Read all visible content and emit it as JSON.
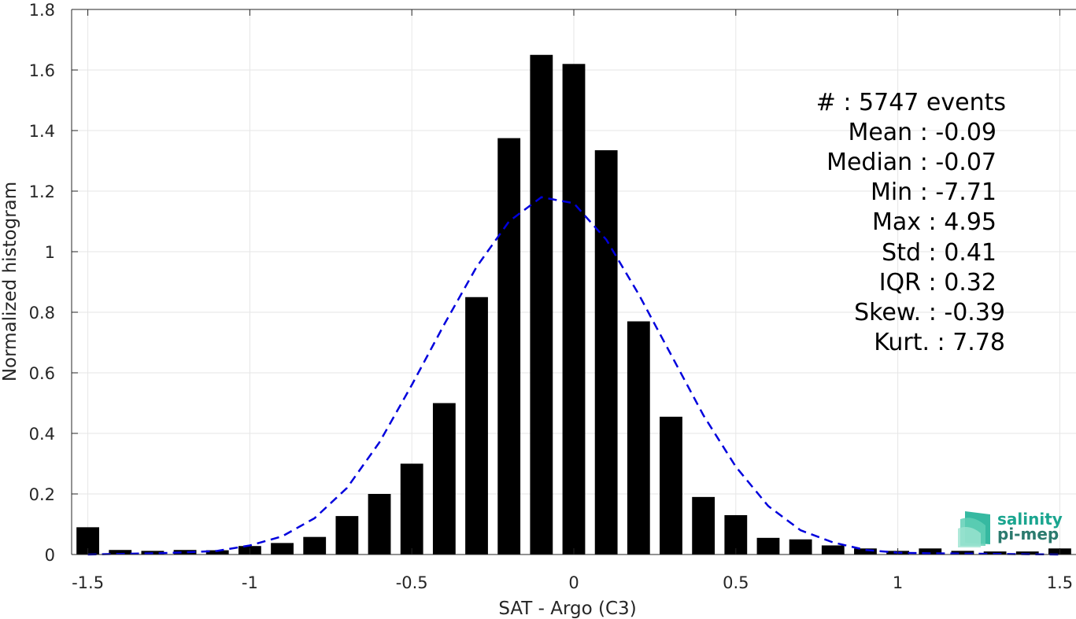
{
  "chart_data": {
    "type": "bar",
    "xlabel": "SAT - Argo (C3)",
    "ylabel": "Normalized histogram",
    "xlim": [
      -1.55,
      1.55
    ],
    "ylim": [
      0,
      1.8
    ],
    "xticks": [
      -1.5,
      -1,
      -0.5,
      0,
      0.5,
      1,
      1.5
    ],
    "xtick_labels": [
      "-1.5",
      "-1",
      "-0.5",
      "0",
      "0.5",
      "1",
      "1.5"
    ],
    "yticks": [
      0,
      0.2,
      0.4,
      0.6,
      0.8,
      1,
      1.2,
      1.4,
      1.6,
      1.8
    ],
    "ytick_labels": [
      "0",
      "0.2",
      "0.4",
      "0.6",
      "0.8",
      "1",
      "1.2",
      "1.4",
      "1.6",
      "1.8"
    ],
    "grid": true,
    "bar_color": "#000000",
    "bar_width": 0.07,
    "bars": {
      "x": [
        -1.5,
        -1.4,
        -1.3,
        -1.2,
        -1.1,
        -1.0,
        -0.9,
        -0.8,
        -0.7,
        -0.6,
        -0.5,
        -0.4,
        -0.3,
        -0.2,
        -0.1,
        0.0,
        0.1,
        0.2,
        0.3,
        0.4,
        0.5,
        0.6,
        0.7,
        0.8,
        0.9,
        1.0,
        1.1,
        1.2,
        1.3,
        1.4,
        1.5
      ],
      "values": [
        0.09,
        0.015,
        0.012,
        0.015,
        0.014,
        0.028,
        0.038,
        0.058,
        0.127,
        0.2,
        0.3,
        0.5,
        0.85,
        1.375,
        1.65,
        1.62,
        1.335,
        0.77,
        0.455,
        0.19,
        0.13,
        0.055,
        0.05,
        0.03,
        0.02,
        0.012,
        0.02,
        0.012,
        0.01,
        0.01,
        0.02
      ]
    },
    "fit": {
      "style": "dashed",
      "color": "#0000dd",
      "x": [
        -1.5,
        -1.4,
        -1.3,
        -1.2,
        -1.1,
        -1.0,
        -0.9,
        -0.8,
        -0.7,
        -0.6,
        -0.5,
        -0.4,
        -0.3,
        -0.2,
        -0.1,
        0.0,
        0.1,
        0.2,
        0.3,
        0.4,
        0.5,
        0.6,
        0.7,
        0.8,
        0.9,
        1.0,
        1.1,
        1.2,
        1.3,
        1.4,
        1.5
      ],
      "values": [
        0.0,
        0.002,
        0.004,
        0.007,
        0.012,
        0.03,
        0.06,
        0.12,
        0.22,
        0.37,
        0.56,
        0.76,
        0.95,
        1.1,
        1.18,
        1.16,
        1.04,
        0.86,
        0.66,
        0.46,
        0.29,
        0.16,
        0.08,
        0.04,
        0.015,
        0.006,
        0.004,
        0.003,
        0.002,
        0.001,
        0.0
      ]
    }
  },
  "stats": {
    "count": "#  : 5747 events",
    "mean": "Mean : -0.09",
    "median": "Median : -0.07",
    "min": "Min : -7.71",
    "max": "Max : 4.95",
    "std": "Std : 0.41",
    "iqr": "IQR : 0.32",
    "skew": "Skew. : -0.39",
    "kurt": "Kurt. : 7.78"
  },
  "logo": {
    "line1": "salinity",
    "line2": "pi-mep",
    "color": "#1aa58f"
  }
}
